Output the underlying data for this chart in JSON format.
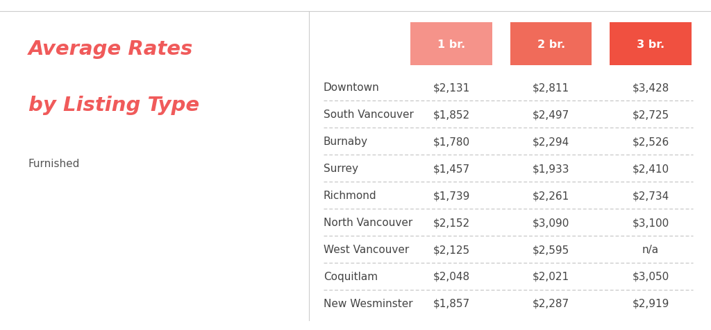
{
  "title_line1": "Average Rates",
  "title_line2": "by Listing Type",
  "subtitle": "Furnished",
  "title_color": "#f05a5a",
  "subtitle_color": "#555555",
  "header_colors": [
    "#f5938a",
    "#f06b5a",
    "#f05040"
  ],
  "header_labels": [
    "1 br.",
    "2 br.",
    "3 br."
  ],
  "neighbourhoods": [
    "Downtown",
    "South Vancouver",
    "Burnaby",
    "Surrey",
    "Richmond",
    "North Vancouver",
    "West Vancouver",
    "Coquitlam",
    "New Wesminster"
  ],
  "col1": [
    "$2,131",
    "$1,852",
    "$1,780",
    "$1,457",
    "$1,739",
    "$2,152",
    "$2,125",
    "$2,048",
    "$1,857"
  ],
  "col2": [
    "$2,811",
    "$2,497",
    "$2,294",
    "$1,933",
    "$2,261",
    "$3,090",
    "$2,595",
    "$2,021",
    "$2,287"
  ],
  "col3": [
    "$3,428",
    "$2,725",
    "$2,526",
    "$2,410",
    "$2,734",
    "$3,100",
    "n/a",
    "$3,050",
    "$2,919"
  ],
  "bg_color": "#ffffff",
  "divider_color": "#bbbbbb",
  "text_color": "#444444",
  "row_text_fontsize": 11.0,
  "header_fontsize": 11.5,
  "title_fontsize": 21,
  "subtitle_fontsize": 11
}
